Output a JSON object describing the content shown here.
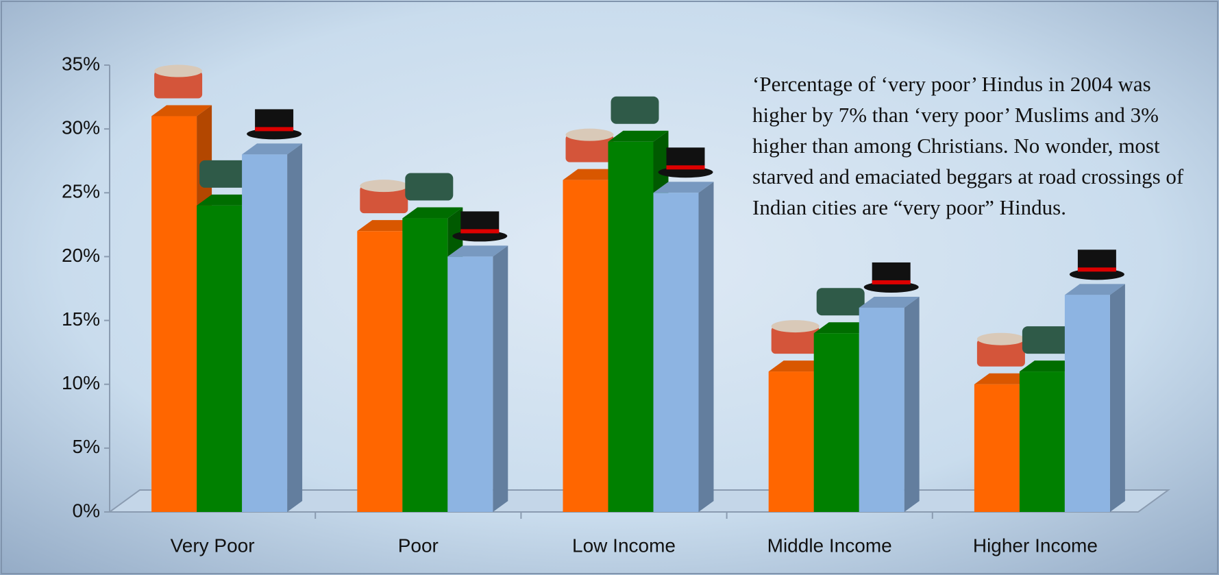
{
  "chart_data": {
    "type": "bar3d",
    "annotation": "‘Percentage of ‘very poor’ Hindus in 2004 was higher by 7% than ‘very poor’ Muslims and 3% higher than among Christians. No wonder, most starved and emaciated beggars at road crossings of  Indian cities are “very poor” Hindus.",
    "categories": [
      "Very Poor",
      "Poor",
      "Low Income",
      "Middle Income",
      "Higher Income"
    ],
    "series": [
      {
        "color": "#ff6600",
        "values": [
          31,
          22,
          26,
          11,
          10
        ]
      },
      {
        "color": "#008000",
        "values": [
          24,
          23,
          29,
          14,
          11
        ]
      },
      {
        "color": "#8db4e2",
        "values": [
          28,
          20,
          25,
          16,
          17
        ]
      }
    ],
    "ylim": [
      0,
      35
    ],
    "yticks": [
      {
        "value": 0,
        "label": "0%"
      },
      {
        "value": 5,
        "label": "5%"
      },
      {
        "value": 10,
        "label": "10%"
      },
      {
        "value": 15,
        "label": "15%"
      },
      {
        "value": 20,
        "label": "20%"
      },
      {
        "value": 25,
        "label": "25%"
      },
      {
        "value": 30,
        "label": "30%"
      },
      {
        "value": 35,
        "label": "35%"
      }
    ]
  }
}
